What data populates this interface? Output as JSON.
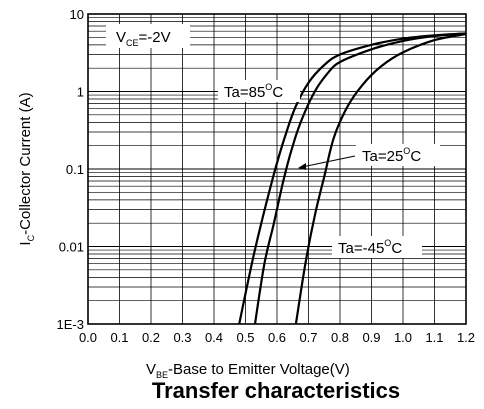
{
  "chart_data": {
    "type": "line",
    "title": "Transfer characteristics",
    "xlabel": {
      "prefix": "V",
      "sub": "BE",
      "rest": "-Base to Emitter Voltage(V)"
    },
    "ylabel": {
      "prefix": "I",
      "sub": "C",
      "rest": "-Collector Current (A)"
    },
    "xlim": [
      0.0,
      1.2
    ],
    "ylim": [
      0.001,
      10
    ],
    "yscale": "log",
    "grid": true,
    "x_ticks": [
      "0.0",
      "0.1",
      "0.2",
      "0.3",
      "0.4",
      "0.5",
      "0.6",
      "0.7",
      "0.8",
      "0.9",
      "1.0",
      "1.1",
      "1.2"
    ],
    "y_ticks": [
      {
        "value": 10,
        "label": "10"
      },
      {
        "value": 1,
        "label": "1"
      },
      {
        "value": 0.1,
        "label": "0.1"
      },
      {
        "value": 0.01,
        "label": "0.01"
      },
      {
        "value": 0.001,
        "label": "1E-3"
      }
    ],
    "series": [
      {
        "name": "Ta=85°C",
        "x": [
          0.48,
          0.52,
          0.55,
          0.58,
          0.6,
          0.63,
          0.66,
          0.7,
          0.75,
          0.8,
          0.9,
          1.0,
          1.1,
          1.2
        ],
        "y": [
          0.001,
          0.006,
          0.02,
          0.06,
          0.12,
          0.3,
          0.65,
          1.3,
          2.2,
          3.0,
          4.0,
          4.8,
          5.3,
          5.6
        ]
      },
      {
        "name": "Ta=25°C",
        "x": [
          0.53,
          0.56,
          0.59,
          0.62,
          0.65,
          0.68,
          0.72,
          0.76,
          0.8,
          0.9,
          1.0,
          1.1,
          1.2
        ],
        "y": [
          0.001,
          0.006,
          0.02,
          0.07,
          0.2,
          0.45,
          1.0,
          1.7,
          2.4,
          3.5,
          4.5,
          5.2,
          5.6
        ]
      },
      {
        "name": "Ta=-45°C",
        "x": [
          0.66,
          0.69,
          0.72,
          0.75,
          0.78,
          0.82,
          0.87,
          0.93,
          1.0,
          1.1,
          1.2
        ],
        "y": [
          0.001,
          0.006,
          0.025,
          0.08,
          0.25,
          0.6,
          1.2,
          2.1,
          3.2,
          4.6,
          5.5
        ]
      }
    ],
    "annotations": {
      "vce": {
        "prefix": "V",
        "sub": "CE",
        "rest": "=-2V"
      },
      "labels": [
        {
          "prefix": "Ta=85",
          "sup": "O",
          "rest": "C"
        },
        {
          "prefix": "Ta=25",
          "sup": "O",
          "rest": "C"
        },
        {
          "prefix": "Ta=-45",
          "sup": "O",
          "rest": "C"
        }
      ]
    }
  },
  "colors": {
    "curve": "#000000",
    "grid": "#000000",
    "background": "#ffffff"
  }
}
